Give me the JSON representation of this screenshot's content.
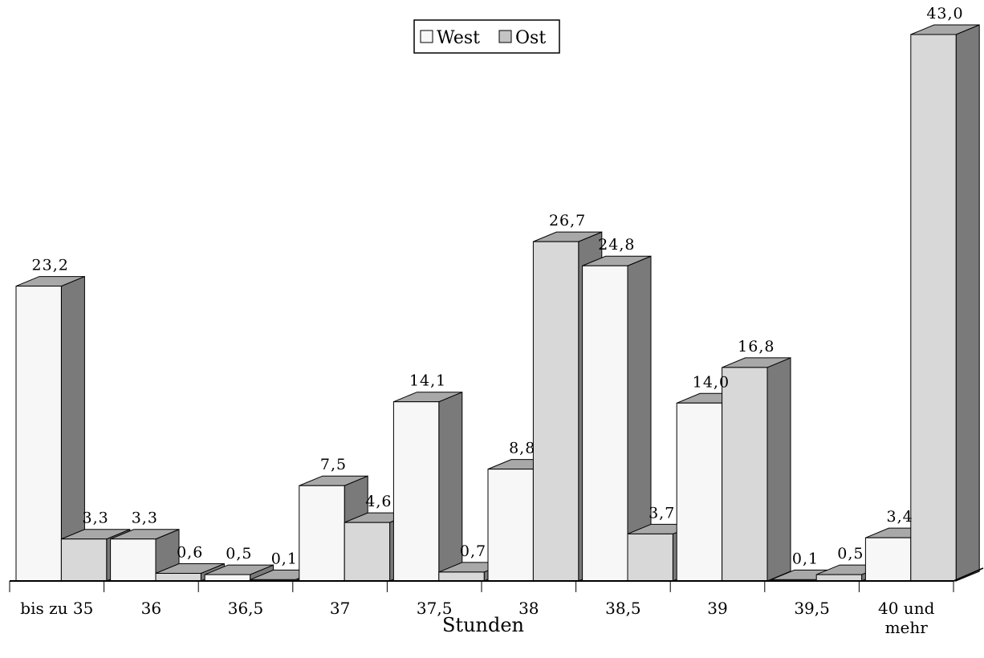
{
  "chart_data": {
    "type": "bar",
    "categories": [
      "bis zu 35",
      "36",
      "36,5",
      "37",
      "37,5",
      "38",
      "38,5",
      "39",
      "39,5",
      "40 und mehr"
    ],
    "series": [
      {
        "name": "West",
        "values": [
          23.2,
          3.3,
          0.5,
          7.5,
          14.1,
          8.8,
          24.8,
          14.0,
          0.1,
          3.4
        ],
        "labels": [
          "23,2",
          "3,3",
          "0,5",
          "7,5",
          "14,1",
          "8,8",
          "24,8",
          "14,0",
          "0,1",
          "3,4"
        ]
      },
      {
        "name": "Ost",
        "values": [
          3.3,
          0.6,
          0.1,
          4.6,
          0.7,
          26.7,
          3.7,
          16.8,
          0.5,
          43.0
        ],
        "labels": [
          "3,3",
          "0,6",
          "0,1",
          "4,6",
          "0,7",
          "26,7",
          "3,7",
          "16,8",
          "0,5",
          "43,0"
        ]
      }
    ],
    "xlabel": "Stunden",
    "ylim": [
      0,
      43
    ],
    "legend_position": "top-center",
    "colors": {
      "West": "#f7f7f7",
      "Ost": "#d8d8d8",
      "side": "#7a7a7a",
      "top": "#a8a8a8"
    }
  }
}
